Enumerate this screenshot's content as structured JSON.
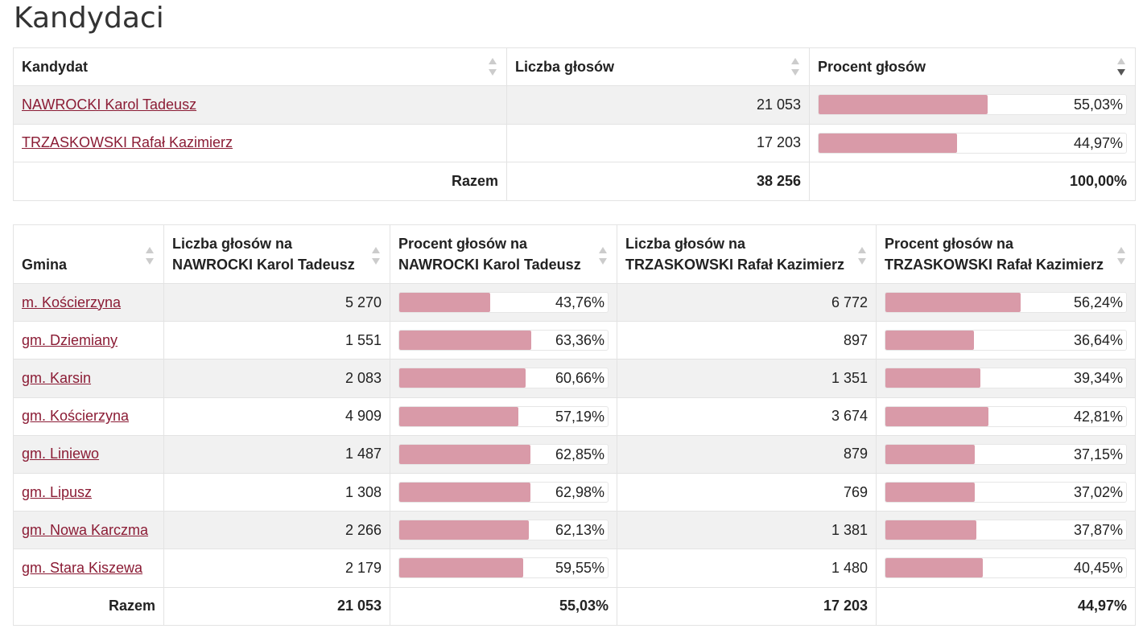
{
  "page_title": "Kandydaci",
  "colors": {
    "link": "#8b1c35",
    "bar": "#d99aa8"
  },
  "candidates": {
    "headers": [
      "Kandydat",
      "Liczba głosów",
      "Procent głosów"
    ],
    "rows": [
      {
        "name": "NAWROCKI Karol Tadeusz",
        "votes": "21 053",
        "percent": "55,03%",
        "fraction": 0.5503
      },
      {
        "name": "TRZASKOWSKI Rafał Kazimierz",
        "votes": "17 203",
        "percent": "44,97%",
        "fraction": 0.4497
      }
    ],
    "total": {
      "label": "Razem",
      "votes": "38 256",
      "percent": "100,00%"
    }
  },
  "gminy": {
    "headers": {
      "gmina": "Gmina",
      "n_votes_line1": "Liczba głosów na",
      "n_votes_line2": "NAWROCKI Karol Tadeusz",
      "n_pct_line1": "Procent głosów na",
      "n_pct_line2": "NAWROCKI Karol Tadeusz",
      "t_votes_line1": "Liczba głosów na",
      "t_votes_line2": "TRZASKOWSKI Rafał Kazimierz",
      "t_pct_line1": "Procent głosów na",
      "t_pct_line2": "TRZASKOWSKI Rafał Kazimierz"
    },
    "rows": [
      {
        "name": "m. Kościerzyna",
        "n_votes": "5 270",
        "n_pct": "43,76%",
        "n_frac": 0.4376,
        "t_votes": "6 772",
        "t_pct": "56,24%",
        "t_frac": 0.5624
      },
      {
        "name": "gm. Dziemiany",
        "n_votes": "1 551",
        "n_pct": "63,36%",
        "n_frac": 0.6336,
        "t_votes": "897",
        "t_pct": "36,64%",
        "t_frac": 0.3664
      },
      {
        "name": "gm. Karsin",
        "n_votes": "2 083",
        "n_pct": "60,66%",
        "n_frac": 0.6066,
        "t_votes": "1 351",
        "t_pct": "39,34%",
        "t_frac": 0.3934
      },
      {
        "name": "gm. Kościerzyna",
        "n_votes": "4 909",
        "n_pct": "57,19%",
        "n_frac": 0.5719,
        "t_votes": "3 674",
        "t_pct": "42,81%",
        "t_frac": 0.4281
      },
      {
        "name": "gm. Liniewo",
        "n_votes": "1 487",
        "n_pct": "62,85%",
        "n_frac": 0.6285,
        "t_votes": "879",
        "t_pct": "37,15%",
        "t_frac": 0.3715
      },
      {
        "name": "gm. Lipusz",
        "n_votes": "1 308",
        "n_pct": "62,98%",
        "n_frac": 0.6298,
        "t_votes": "769",
        "t_pct": "37,02%",
        "t_frac": 0.3702
      },
      {
        "name": "gm. Nowa Karczma",
        "n_votes": "2 266",
        "n_pct": "62,13%",
        "n_frac": 0.6213,
        "t_votes": "1 381",
        "t_pct": "37,87%",
        "t_frac": 0.3787
      },
      {
        "name": "gm. Stara Kiszewa",
        "n_votes": "2 179",
        "n_pct": "59,55%",
        "n_frac": 0.5955,
        "t_votes": "1 480",
        "t_pct": "40,45%",
        "t_frac": 0.4045
      }
    ],
    "total": {
      "label": "Razem",
      "n_votes": "21 053",
      "n_pct": "55,03%",
      "t_votes": "17 203",
      "t_pct": "44,97%"
    }
  }
}
